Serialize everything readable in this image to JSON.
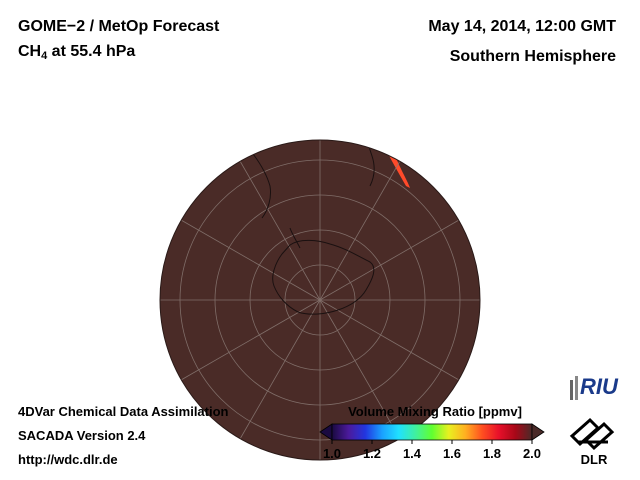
{
  "header": {
    "title_line1": "GOME−2 / MetOp Forecast",
    "species_main": "CH",
    "species_sub": "4",
    "species_rest": " at 55.4 hPa",
    "datetime": "May 14, 2014, 12:00 GMT",
    "region": "Southern Hemisphere"
  },
  "footer": {
    "line1": "4DVar Chemical Data Assimilation",
    "line2": "SACADA Version 2.4",
    "line3": "http://wdc.dlr.de"
  },
  "colorbar": {
    "title": "Volume Mixing Ratio [ppmv]",
    "ticks": [
      "1.0",
      "1.2",
      "1.4",
      "1.6",
      "1.8",
      "2.0"
    ],
    "stops": [
      "#1a0a40",
      "#4b1a9c",
      "#2236e0",
      "#1aa0ff",
      "#20e0ff",
      "#40f0a0",
      "#60ff30",
      "#e8f020",
      "#ffb020",
      "#ff5020",
      "#e8102a",
      "#a80818",
      "#4a2a28"
    ]
  },
  "map": {
    "projection": "orthographic, south pole view",
    "background_color": "#4a2b27",
    "high_color": "#ff3030",
    "mid_color": "#ffc020",
    "low_color": "#70ee30"
  },
  "logos": {
    "riu": "RIU",
    "dlr": "DLR"
  }
}
